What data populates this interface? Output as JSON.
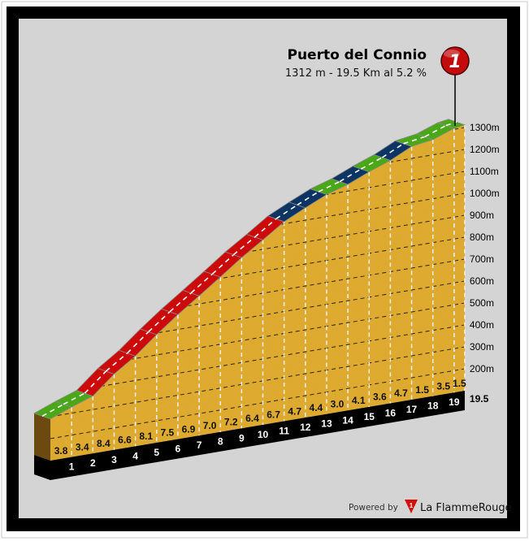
{
  "chart_data": {
    "type": "area",
    "title": "Puerto del Connio",
    "subtitle": "1312 m - 19.5 Km al 5.2 %",
    "summit_elevation_m": 1312,
    "distance_km": 19.5,
    "km_ticks": [
      "1",
      "2",
      "3",
      "4",
      "5",
      "6",
      "7",
      "8",
      "9",
      "10",
      "11",
      "12",
      "13",
      "14",
      "15",
      "16",
      "17",
      "18",
      "19"
    ],
    "end_label": "19.5",
    "segment_gradients": [
      "3.8",
      "3.4",
      "8.4",
      "6.6",
      "8.1",
      "7.5",
      "6.9",
      "7.0",
      "7.2",
      "6.4",
      "6.7",
      "4.7",
      "4.4",
      "3.0",
      "4.1",
      "3.6",
      "4.7",
      "1.5",
      "3.5",
      "1.5"
    ],
    "y_tick_labels": [
      "200m",
      "300m",
      "400m",
      "500m",
      "600m",
      "700m",
      "800m",
      "900m",
      "1000m",
      "1100m",
      "1200m",
      "1300m"
    ],
    "y_ticks": [
      200,
      300,
      400,
      500,
      600,
      700,
      800,
      900,
      1000,
      1100,
      1200,
      1300
    ],
    "grid": true,
    "marker_label": "1",
    "colors": {
      "easy": "#4aa818",
      "medium": "#0d3563",
      "hard": "#cc0a0a",
      "terrain": "#dca629",
      "side": "#6b4a12",
      "base": "#000000",
      "background": "#d4d4d4"
    }
  },
  "footer": {
    "powered_by": "Powered by",
    "brand_name": "La FlammeRouge",
    "brand_logo_number": "1"
  }
}
